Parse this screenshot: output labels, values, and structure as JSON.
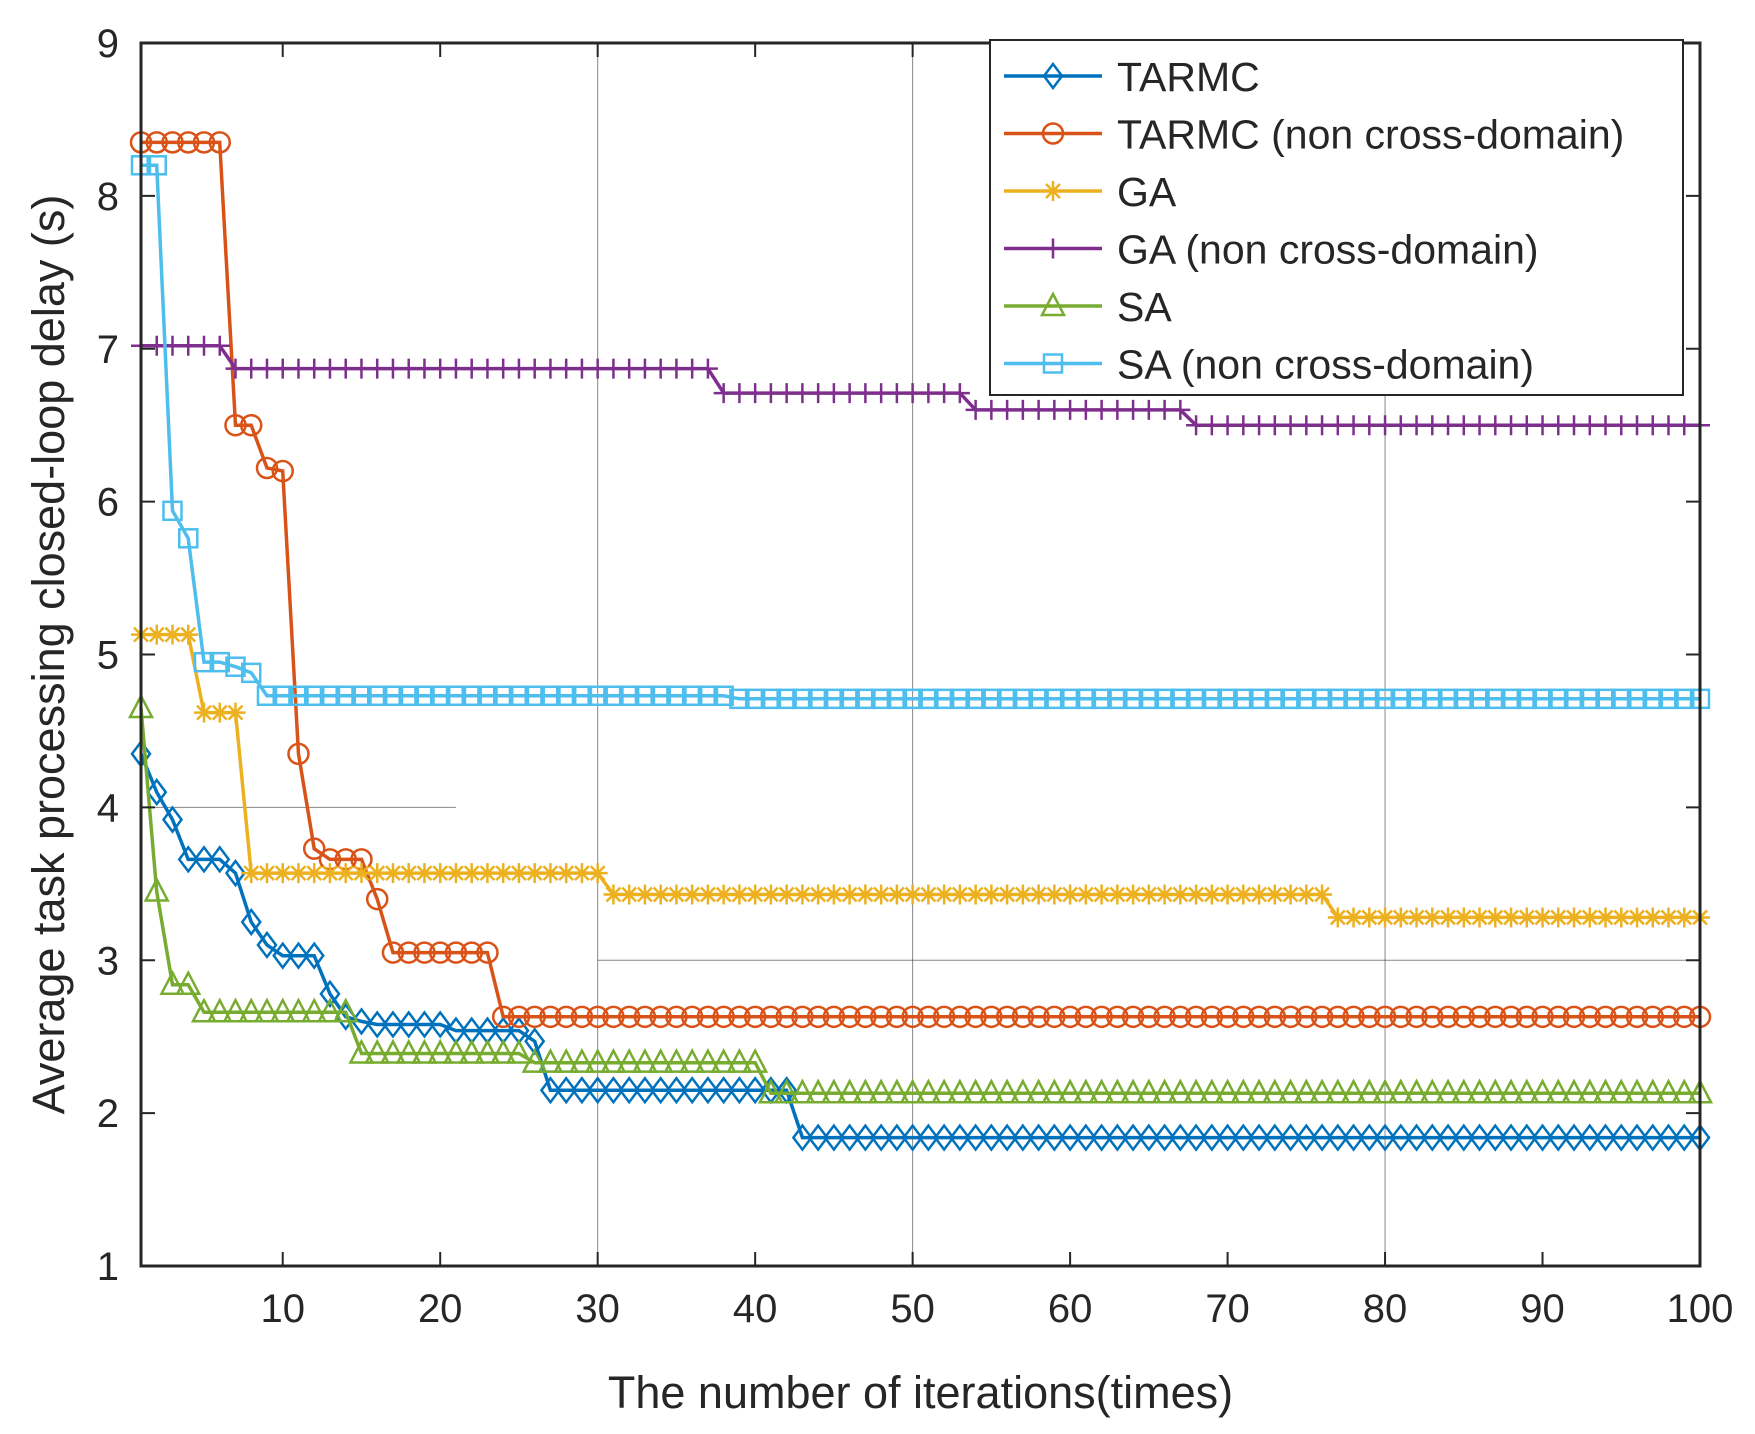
{
  "chart_data": {
    "type": "line",
    "title": "",
    "xlabel": "The number of iterations(times)",
    "ylabel": "Average task processing closed-loop delay (s)",
    "xlim": [
      1,
      100
    ],
    "ylim": [
      1,
      9
    ],
    "xticks": [
      10,
      20,
      30,
      40,
      50,
      60,
      70,
      80,
      90,
      100
    ],
    "yticks": [
      1,
      2,
      3,
      4,
      5,
      6,
      7,
      8,
      9
    ],
    "grid": "partial",
    "legend_position": "top-right",
    "series": [
      {
        "name": "TARMC",
        "color": "#0072BD",
        "marker": "diamond",
        "steps": [
          [
            1,
            4.35
          ],
          [
            2,
            4.1
          ],
          [
            3,
            3.92
          ],
          [
            4,
            3.66
          ],
          [
            5,
            3.66
          ],
          [
            6,
            3.66
          ],
          [
            7,
            3.57
          ],
          [
            8,
            3.25
          ],
          [
            9,
            3.1
          ],
          [
            10,
            3.03
          ],
          [
            11,
            3.03
          ],
          [
            12,
            3.03
          ],
          [
            13,
            2.78
          ],
          [
            14,
            2.63
          ],
          [
            15,
            2.6
          ],
          [
            16,
            2.58
          ],
          [
            20,
            2.58
          ],
          [
            21,
            2.54
          ],
          [
            26,
            2.47
          ],
          [
            27,
            2.15
          ],
          [
            42,
            2.15
          ],
          [
            43,
            1.84
          ],
          [
            100,
            1.84
          ]
        ]
      },
      {
        "name": "TARMC (non cross-domain)",
        "color": "#D95319",
        "marker": "circle",
        "steps": [
          [
            1,
            8.35
          ],
          [
            6,
            8.35
          ],
          [
            7,
            6.5
          ],
          [
            8,
            6.5
          ],
          [
            9,
            6.22
          ],
          [
            10,
            6.2
          ],
          [
            11,
            4.35
          ],
          [
            12,
            3.73
          ],
          [
            13,
            3.66
          ],
          [
            14,
            3.66
          ],
          [
            15,
            3.66
          ],
          [
            16,
            3.4
          ],
          [
            17,
            3.05
          ],
          [
            23,
            3.05
          ],
          [
            24,
            2.63
          ],
          [
            100,
            2.63
          ]
        ]
      },
      {
        "name": "GA",
        "color": "#EDB120",
        "marker": "asterisk",
        "steps": [
          [
            1,
            5.13
          ],
          [
            4,
            5.13
          ],
          [
            5,
            4.62
          ],
          [
            7,
            4.62
          ],
          [
            8,
            3.57
          ],
          [
            30,
            3.57
          ],
          [
            31,
            3.43
          ],
          [
            76,
            3.43
          ],
          [
            77,
            3.28
          ],
          [
            100,
            3.28
          ]
        ]
      },
      {
        "name": "GA (non cross-domain)",
        "color": "#7E2F8E",
        "marker": "plus",
        "steps": [
          [
            1,
            7.02
          ],
          [
            6,
            7.02
          ],
          [
            7,
            6.87
          ],
          [
            37,
            6.87
          ],
          [
            38,
            6.71
          ],
          [
            53,
            6.71
          ],
          [
            54,
            6.6
          ],
          [
            67,
            6.6
          ],
          [
            68,
            6.5
          ],
          [
            100,
            6.5
          ]
        ]
      },
      {
        "name": "SA",
        "color": "#77AC30",
        "marker": "triangle",
        "steps": [
          [
            1,
            4.65
          ],
          [
            2,
            3.45
          ],
          [
            3,
            2.84
          ],
          [
            4,
            2.84
          ],
          [
            5,
            2.66
          ],
          [
            14,
            2.66
          ],
          [
            15,
            2.39
          ],
          [
            25,
            2.39
          ],
          [
            26,
            2.33
          ],
          [
            40,
            2.33
          ],
          [
            41,
            2.13
          ],
          [
            100,
            2.13
          ]
        ]
      },
      {
        "name": "SA (non cross-domain)",
        "color": "#4DBEEE",
        "marker": "square",
        "steps": [
          [
            1,
            8.2
          ],
          [
            2,
            8.2
          ],
          [
            3,
            5.94
          ],
          [
            4,
            5.76
          ],
          [
            5,
            4.95
          ],
          [
            6,
            4.95
          ],
          [
            7,
            4.92
          ],
          [
            8,
            4.88
          ],
          [
            9,
            4.73
          ],
          [
            38,
            4.73
          ],
          [
            39,
            4.71
          ],
          [
            100,
            4.71
          ]
        ]
      }
    ]
  }
}
